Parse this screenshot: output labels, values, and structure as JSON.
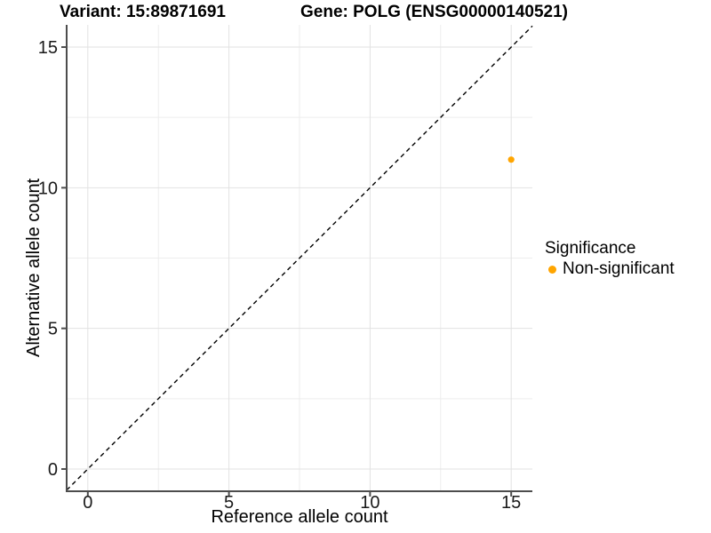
{
  "chart_data": {
    "type": "scatter",
    "title_left": "Variant: 15:89871691",
    "title_right": "Gene: POLG (ENSG00000140521)",
    "xlabel": "Reference allele count",
    "ylabel": "Alternative allele count",
    "x_ticks": [
      0,
      5,
      10,
      15
    ],
    "y_ticks": [
      0,
      5,
      10,
      15
    ],
    "xlim": [
      -0.75,
      15.75
    ],
    "ylim": [
      -0.79,
      15.79
    ],
    "grid": {
      "major": true,
      "minor": true,
      "major_color": "#E2E2E2",
      "minor_color": "#EDEDED"
    },
    "background_color": "#FFFFFF",
    "axis_color": "#4D4D4D",
    "identity_line": {
      "slope": 1,
      "intercept": 0,
      "style": "dashed",
      "color": "#000000"
    },
    "points": [
      {
        "x": 15,
        "y": 11,
        "series": "Non-significant"
      }
    ],
    "series_colors": {
      "Non-significant": "#FFA500"
    },
    "legend": {
      "title": "Significance",
      "position": "right",
      "items": [
        {
          "label": "Non-significant",
          "color": "#FFA500"
        }
      ]
    }
  }
}
